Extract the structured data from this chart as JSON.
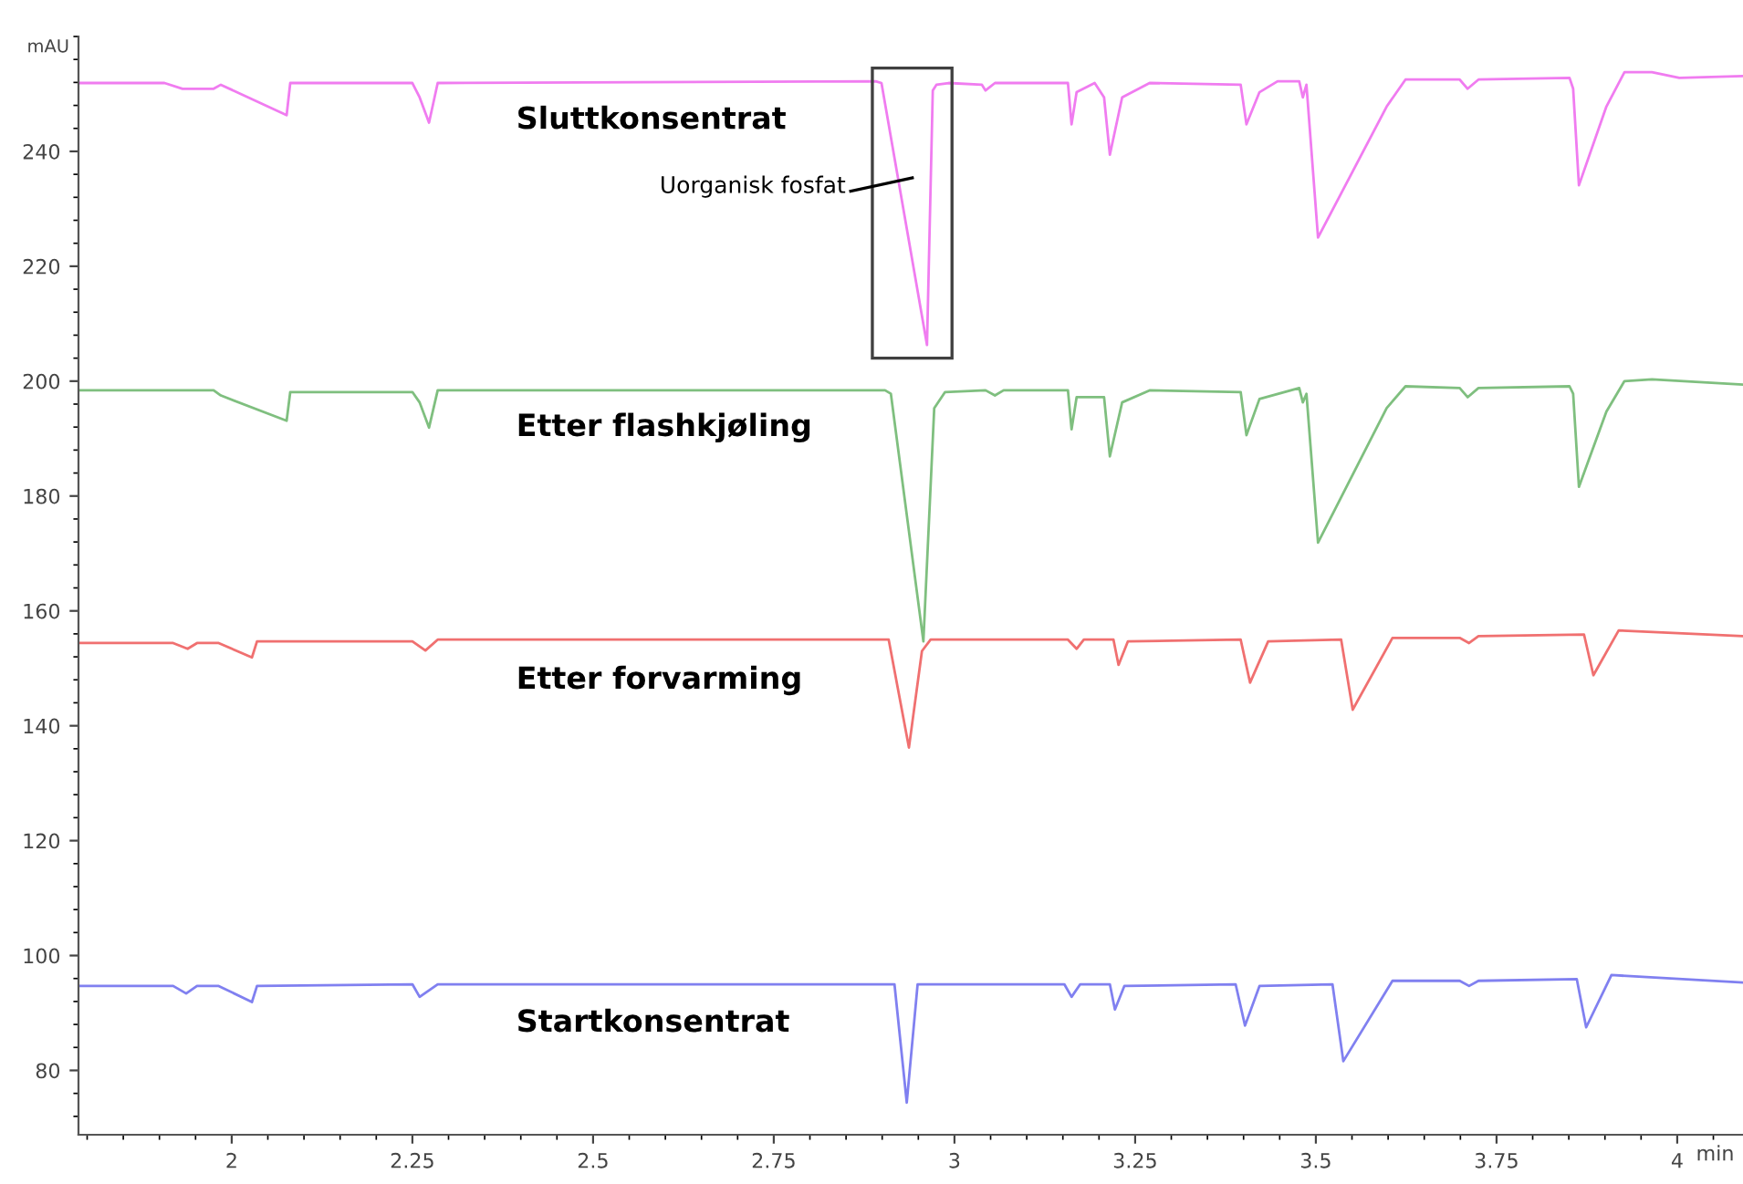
{
  "chart_data": {
    "type": "line",
    "ylabel": "mAU",
    "xlabel": "min",
    "xlim": [
      1.788,
      4.091
    ],
    "xticks": [
      2,
      2.25,
      2.5,
      2.75,
      3,
      3.25,
      3.5,
      3.75,
      4
    ],
    "ylim": [
      68.8,
      260
    ],
    "yticks": [
      80,
      100,
      120,
      140,
      160,
      180,
      200,
      220,
      240
    ],
    "grid": false,
    "legend": false,
    "marker": "none",
    "line_style": "solid",
    "series": [
      {
        "name": "Sluttkonsentrat",
        "color": "#f07cf0",
        "x": [
          1.788,
          1.907,
          1.932,
          1.975,
          1.985,
          2.076,
          2.081,
          2.25,
          2.26,
          2.273,
          2.285,
          2.891,
          2.899,
          2.962,
          2.97,
          2.975,
          2.992,
          3.038,
          3.043,
          3.056,
          3.157,
          3.162,
          3.169,
          3.194,
          3.207,
          3.215,
          3.232,
          3.27,
          3.396,
          3.404,
          3.422,
          3.447,
          3.477,
          3.482,
          3.487,
          3.503,
          3.598,
          3.624,
          3.699,
          3.71,
          3.725,
          3.851,
          3.856,
          3.864,
          3.902,
          3.927,
          3.965,
          4.003,
          4.091
        ],
        "values": [
          251.9,
          251.9,
          250.9,
          250.9,
          251.6,
          246.3,
          251.9,
          251.9,
          249.4,
          245,
          251.9,
          252.2,
          251.9,
          206.3,
          250.6,
          251.6,
          251.9,
          251.6,
          250.6,
          251.9,
          251.9,
          244.7,
          250.3,
          251.9,
          249.4,
          239.4,
          249.4,
          251.9,
          251.6,
          244.7,
          250.3,
          252.2,
          252.2,
          249.4,
          251.6,
          225,
          247.8,
          252.5,
          252.5,
          250.9,
          252.5,
          252.8,
          250.9,
          234.1,
          247.8,
          253.8,
          253.8,
          252.8,
          253.1
        ]
      },
      {
        "name": "Etter flashkjøling",
        "color": "#7fbf7f",
        "x": [
          1.788,
          1.975,
          1.985,
          2.076,
          2.081,
          2.25,
          2.26,
          2.273,
          2.285,
          2.904,
          2.912,
          2.957,
          2.972,
          2.987,
          3.043,
          3.056,
          3.068,
          3.157,
          3.162,
          3.169,
          3.207,
          3.215,
          3.232,
          3.27,
          3.396,
          3.404,
          3.422,
          3.477,
          3.482,
          3.487,
          3.503,
          3.598,
          3.624,
          3.699,
          3.71,
          3.725,
          3.851,
          3.856,
          3.864,
          3.902,
          3.927,
          3.965,
          4.091
        ],
        "values": [
          198.4,
          198.4,
          197.5,
          193.1,
          198.1,
          198.1,
          196.3,
          191.9,
          198.4,
          198.4,
          197.8,
          154.7,
          195.3,
          198.1,
          198.4,
          197.5,
          198.4,
          198.4,
          191.6,
          197.2,
          197.2,
          186.9,
          196.3,
          198.4,
          198.1,
          190.6,
          196.9,
          198.8,
          196.3,
          197.8,
          171.9,
          195.3,
          199.1,
          198.8,
          197.2,
          198.8,
          199.1,
          197.8,
          181.6,
          194.7,
          200,
          200.3,
          199.4
        ]
      },
      {
        "name": "Etter forvarming",
        "color": "#f07070",
        "x": [
          1.788,
          1.919,
          1.939,
          1.952,
          1.982,
          2.028,
          2.035,
          2.25,
          2.268,
          2.285,
          2.909,
          2.937,
          2.955,
          2.967,
          3.157,
          3.169,
          3.179,
          3.22,
          3.227,
          3.24,
          3.396,
          3.409,
          3.434,
          3.535,
          3.551,
          3.606,
          3.699,
          3.712,
          3.725,
          3.871,
          3.884,
          3.919,
          4.091
        ],
        "values": [
          154.4,
          154.4,
          153.4,
          154.4,
          154.4,
          151.9,
          154.7,
          154.7,
          153.1,
          155,
          155,
          136.2,
          153,
          155,
          155,
          153.4,
          155,
          155,
          150.6,
          154.7,
          155,
          147.5,
          154.7,
          155,
          142.8,
          155.3,
          155.3,
          154.4,
          155.6,
          155.9,
          148.8,
          156.6,
          155.6
        ]
      },
      {
        "name": "Startkonsentrat",
        "color": "#8080f0",
        "x": [
          1.788,
          1.919,
          1.937,
          1.952,
          1.982,
          2.028,
          2.035,
          2.25,
          2.26,
          2.285,
          2.917,
          2.934,
          2.949,
          3.152,
          3.162,
          3.174,
          3.215,
          3.222,
          3.235,
          3.389,
          3.402,
          3.422,
          3.523,
          3.538,
          3.606,
          3.699,
          3.712,
          3.725,
          3.861,
          3.874,
          3.909,
          4.091
        ],
        "values": [
          94.7,
          94.7,
          93.4,
          94.7,
          94.7,
          91.9,
          94.7,
          95,
          92.8,
          95,
          95,
          74.4,
          95,
          95,
          92.8,
          95,
          95,
          90.6,
          94.7,
          95,
          87.8,
          94.7,
          95,
          81.6,
          95.6,
          95.6,
          94.7,
          95.6,
          95.9,
          87.5,
          96.6,
          95.3
        ]
      }
    ],
    "annotations": [
      "Uorganisk fosfat"
    ]
  }
}
